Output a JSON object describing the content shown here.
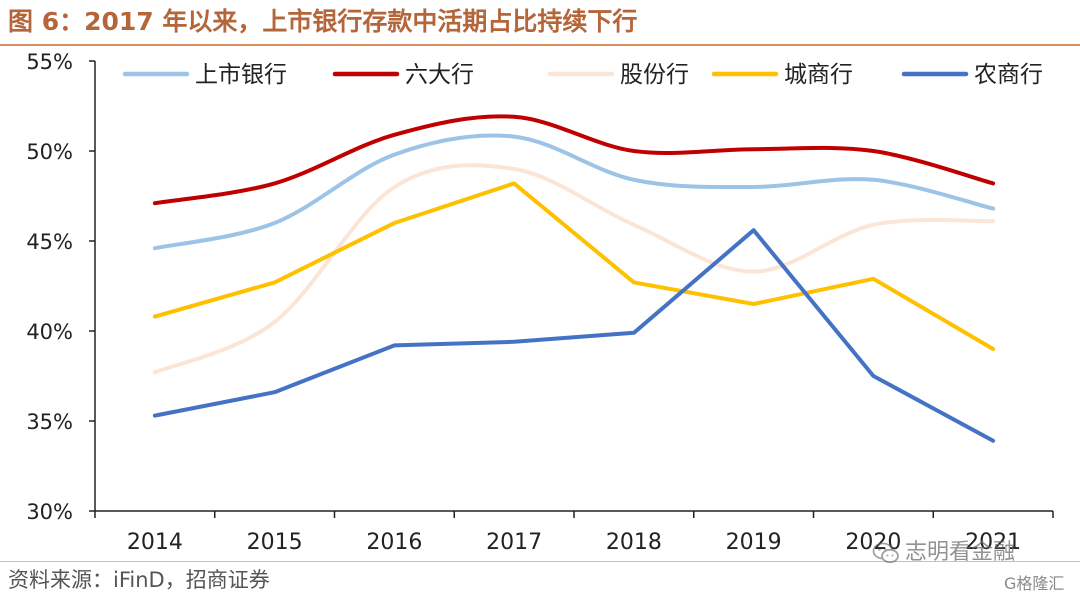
{
  "header": {
    "title": "图 6：2017 年以来，上市银行存款中活期占比持续下行"
  },
  "footer": {
    "source": "资料来源：iFinD，招商证券"
  },
  "watermark": {
    "text": "志明看金融",
    "icon": "wechat-icon",
    "badge": "G格隆汇"
  },
  "colors": {
    "title": "#b5653a",
    "rule": "#d98e5e",
    "axis": "#222222"
  },
  "chart_data": {
    "type": "line",
    "categories": [
      "2014",
      "2015",
      "2016",
      "2017",
      "2018",
      "2019",
      "2020",
      "2021"
    ],
    "yticks": [
      "30%",
      "35%",
      "40%",
      "45%",
      "50%",
      "55%"
    ],
    "ylim": [
      30,
      55
    ],
    "grid": false,
    "legend_position": "top",
    "smooth": true,
    "series": [
      {
        "name": "上市银行",
        "color": "#9dc3e6",
        "values": [
          44.6,
          46.0,
          49.8,
          50.8,
          48.4,
          48.0,
          48.4,
          46.8
        ]
      },
      {
        "name": "六大行",
        "color": "#c00000",
        "values": [
          47.1,
          48.2,
          50.9,
          51.9,
          50.0,
          50.1,
          50.0,
          48.2
        ]
      },
      {
        "name": "股份行",
        "color": "#fbe5d6",
        "values": [
          37.7,
          40.5,
          48.0,
          49.0,
          45.9,
          43.3,
          45.9,
          46.1
        ]
      },
      {
        "name": "城商行",
        "color": "#ffc000",
        "values": [
          40.8,
          42.7,
          46.0,
          48.2,
          42.7,
          41.5,
          42.9,
          39.0
        ]
      },
      {
        "name": "农商行",
        "color": "#4472c4",
        "values": [
          35.3,
          36.6,
          39.2,
          39.4,
          39.9,
          45.6,
          37.5,
          33.9
        ]
      }
    ]
  }
}
